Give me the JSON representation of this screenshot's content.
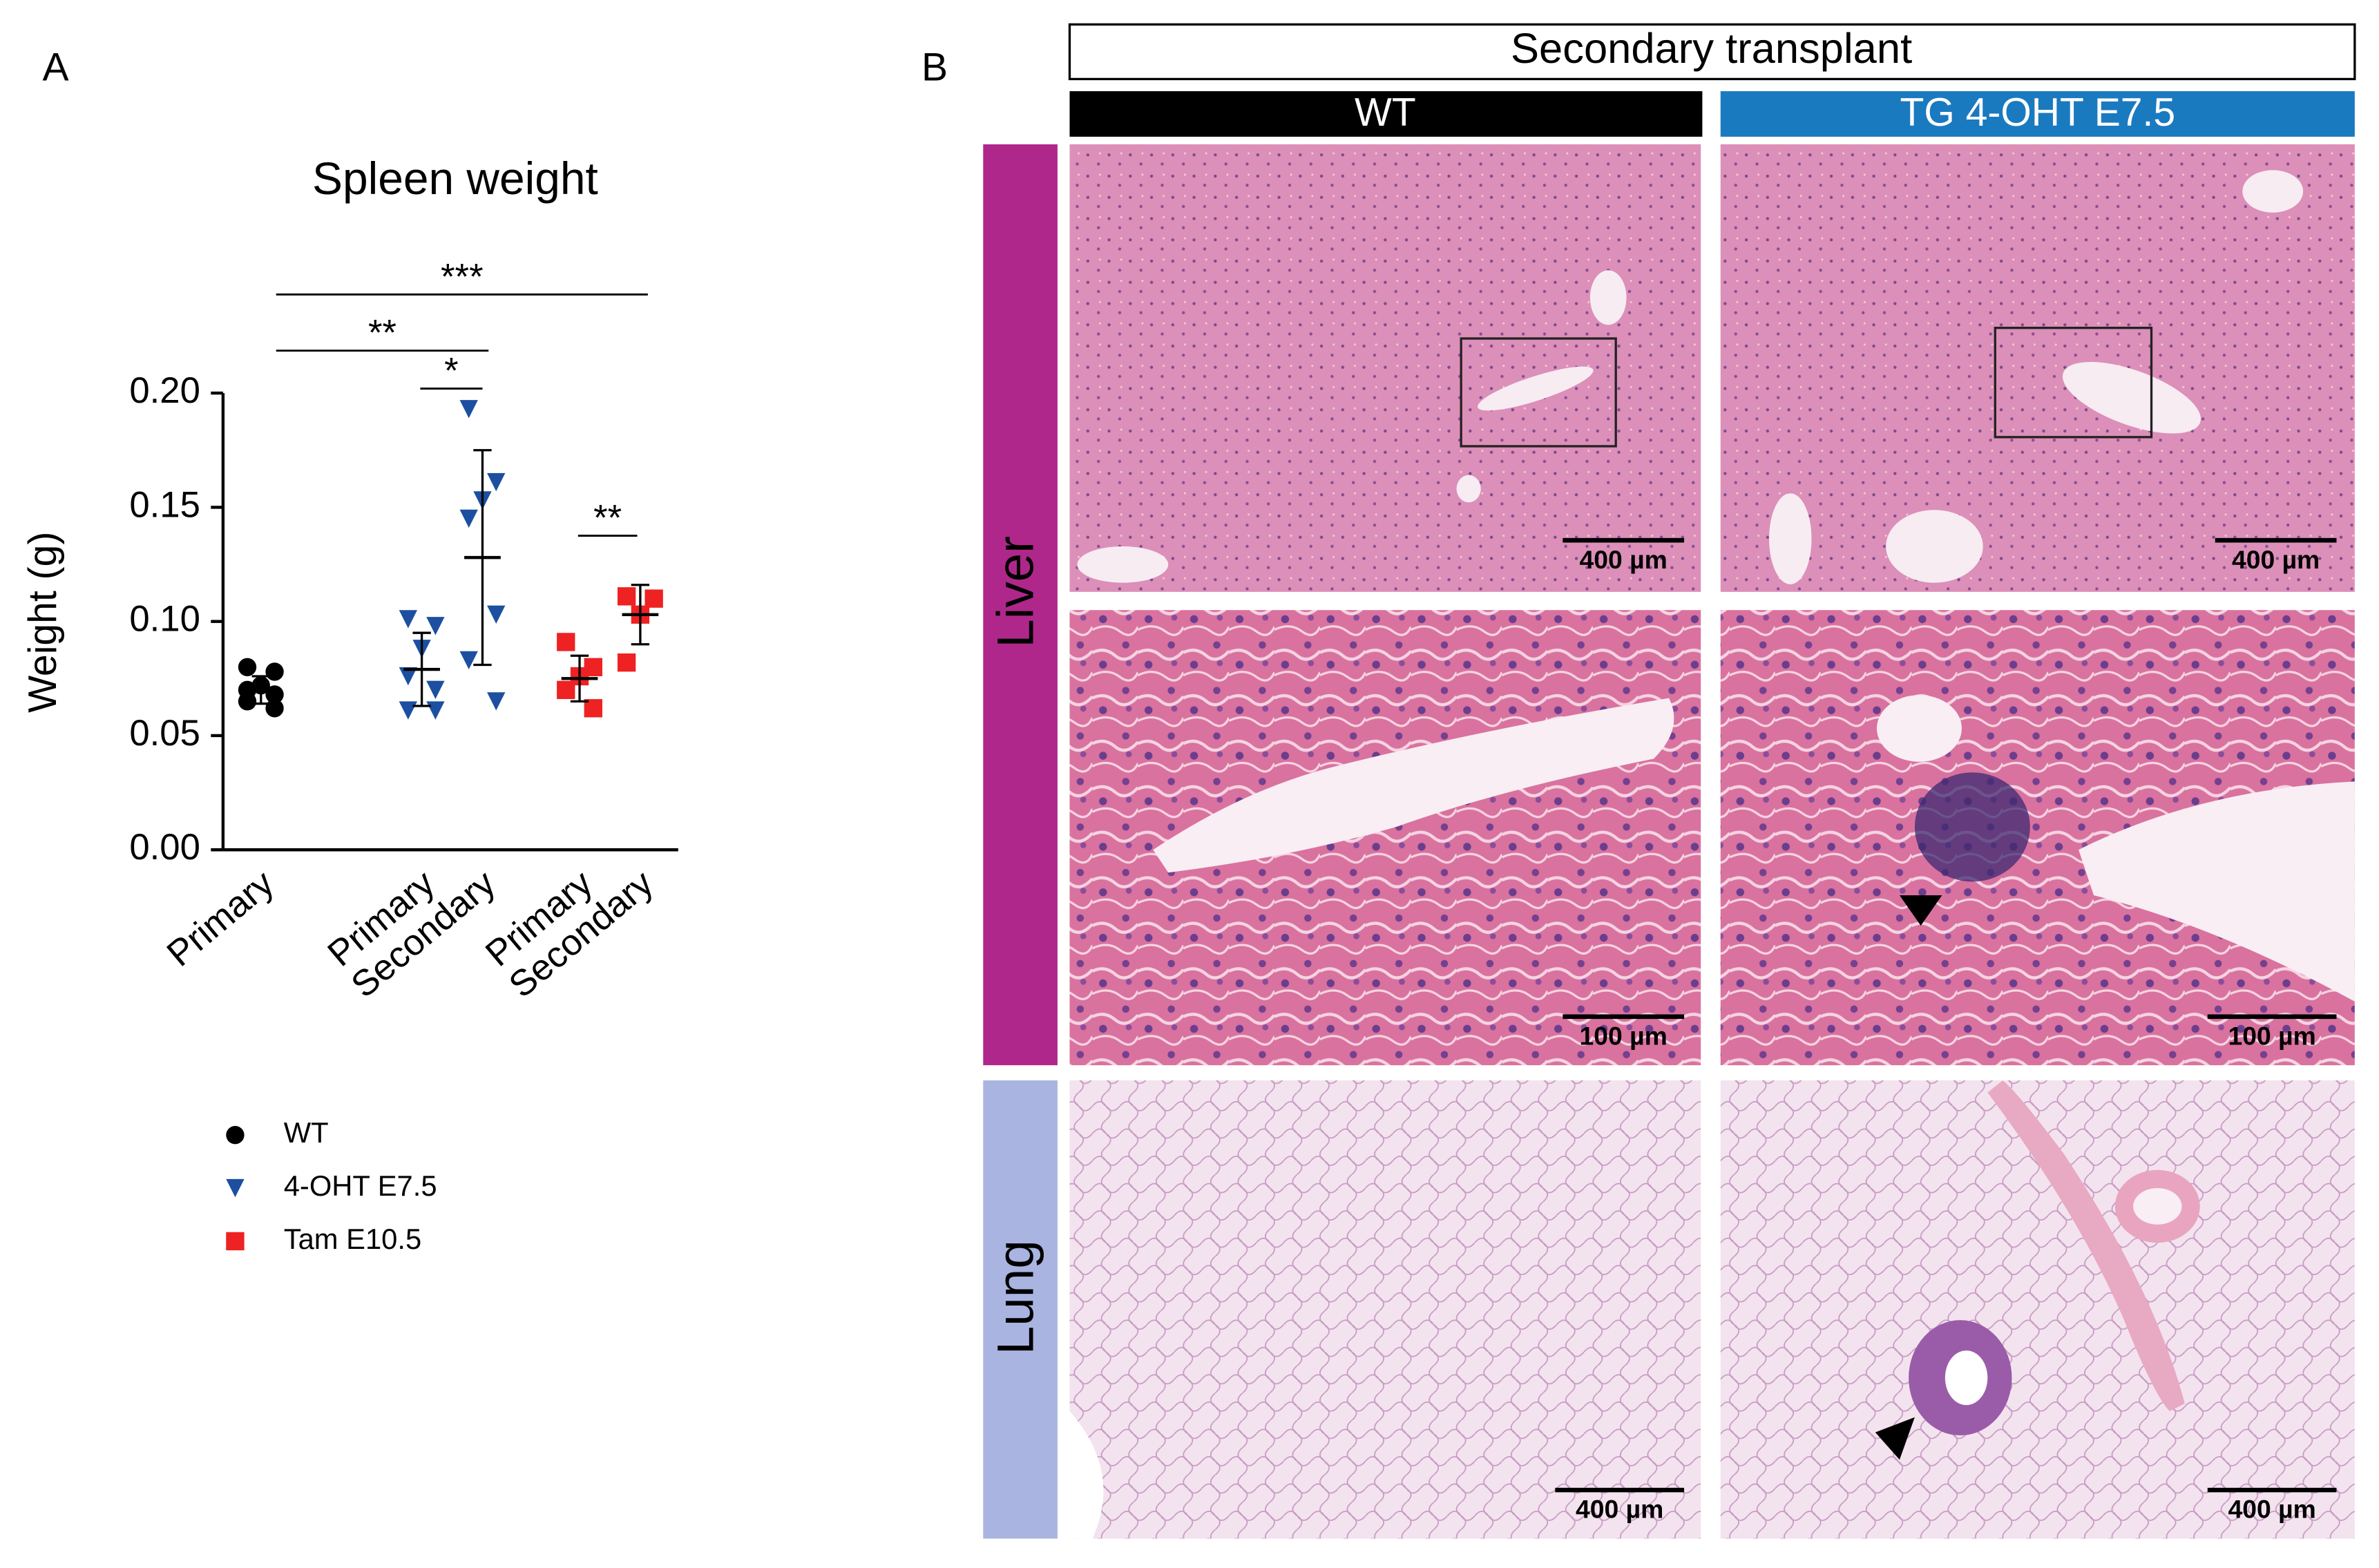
{
  "chart_data": {
    "type": "dot_plot",
    "panel_label": "A",
    "title": "Spleen weight",
    "ylabel": "Weight (g)",
    "ylim": [
      0,
      0.2
    ],
    "yticks": [
      {
        "value": 0,
        "label": "0.00"
      },
      {
        "value": 0.05,
        "label": "0.05"
      },
      {
        "value": 0.1,
        "label": "0.10"
      },
      {
        "value": 0.15,
        "label": "0.15"
      },
      {
        "value": 0.2,
        "label": "0.20"
      }
    ],
    "series": [
      {
        "name": "WT",
        "color": "#000000",
        "marker": "circle",
        "groups": [
          {
            "category": "Primary",
            "values": [
              0.08,
              0.078,
              0.072,
              0.07,
              0.068,
              0.065,
              0.062
            ],
            "mean": 0.07,
            "sd": 0.006
          }
        ]
      },
      {
        "name": "4-OHT E7.5",
        "color": "#1c4fa0",
        "marker": "triangle",
        "groups": [
          {
            "category": "Primary",
            "values": [
              0.101,
              0.098,
              0.088,
              0.076,
              0.07,
              0.061,
              0.061
            ],
            "mean": 0.079,
            "sd": 0.016
          },
          {
            "category": "Secondary",
            "values": [
              0.193,
              0.161,
              0.153,
              0.145,
              0.103,
              0.083,
              0.065
            ],
            "mean": 0.128,
            "sd": 0.047
          }
        ]
      },
      {
        "name": "Tam E10.5",
        "color": "#ee2222",
        "marker": "square",
        "groups": [
          {
            "category": "Primary",
            "values": [
              0.091,
              0.08,
              0.076,
              0.07,
              0.062
            ],
            "mean": 0.075,
            "sd": 0.01
          },
          {
            "category": "Secondary",
            "values": [
              0.111,
              0.11,
              0.103,
              0.082
            ],
            "mean": 0.103,
            "sd": 0.013
          }
        ]
      }
    ],
    "annotations": [
      {
        "text": "***"
      },
      {
        "text": "**"
      },
      {
        "text": "*"
      },
      {
        "text": "**"
      }
    ]
  },
  "panel_b": {
    "panel_label": "B",
    "header": "Secondary transplant",
    "columns": [
      "WT",
      "TG 4-OHT E7.5"
    ],
    "rows": [
      "Liver",
      "Lung"
    ],
    "scale_bars": [
      [
        "400 µm",
        "400 µm"
      ],
      [
        "100 µm",
        "100 µm"
      ],
      [
        "400 µm",
        "400 µm"
      ]
    ]
  }
}
